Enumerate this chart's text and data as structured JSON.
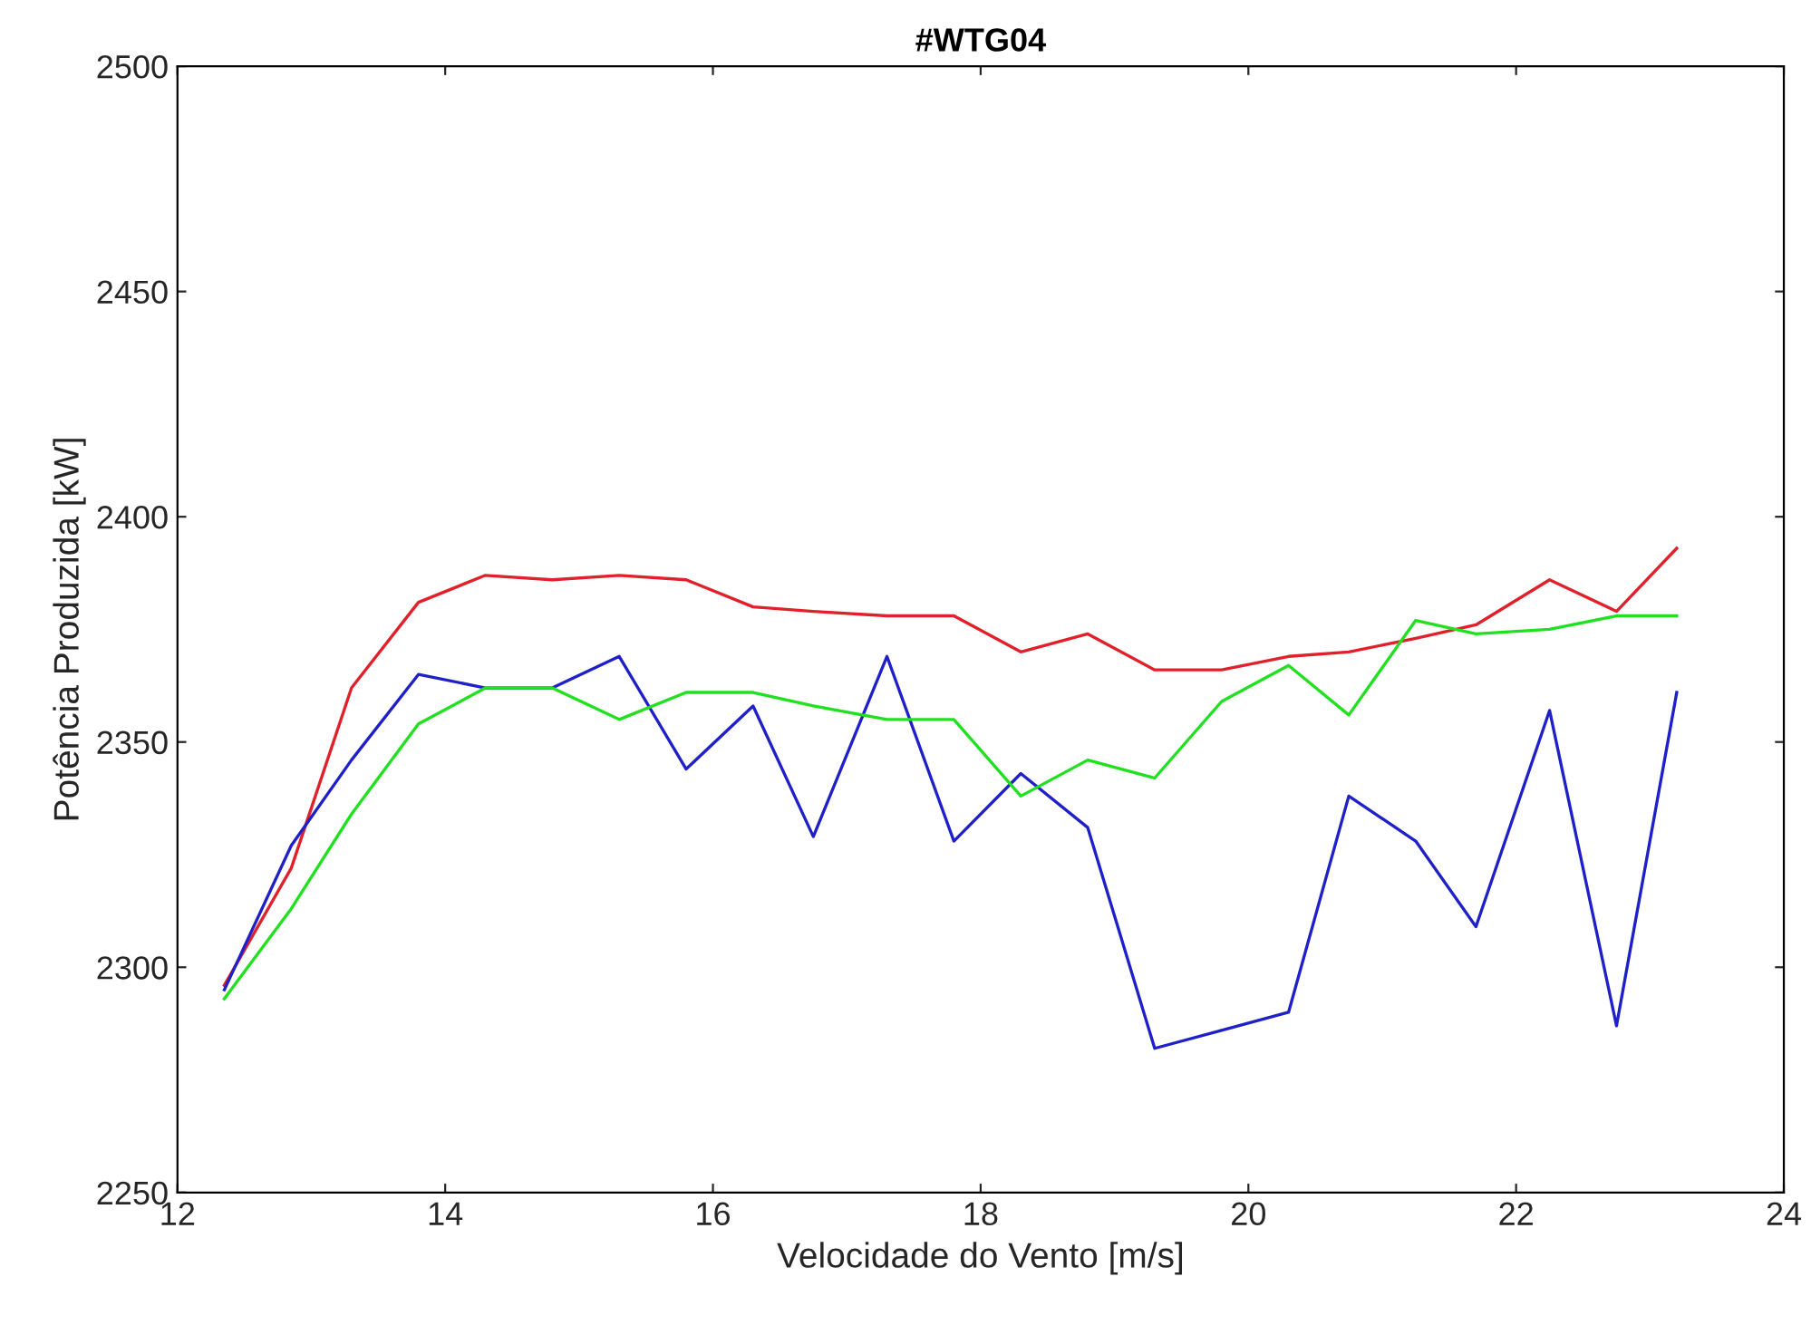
{
  "chart_data": {
    "type": "line",
    "title": "#WTG04",
    "xlabel": "Velocidade do Vento [m/s]",
    "ylabel": "Potência Produzida [kW]",
    "x": [
      12.35,
      12.85,
      13.3,
      13.8,
      14.3,
      14.8,
      15.3,
      15.8,
      16.3,
      16.75,
      17.3,
      17.8,
      18.3,
      18.8,
      19.3,
      19.8,
      20.3,
      20.75,
      21.25,
      21.7,
      22.25,
      22.75,
      23.2
    ],
    "series": [
      {
        "color": "#e0202a",
        "values": [
          2296,
          2322,
          2362,
          2381,
          2387,
          2386,
          2387,
          2386,
          2380,
          2379,
          2378,
          2378,
          2370,
          2374,
          2366,
          2366,
          2369,
          2370,
          2373,
          2376,
          2386,
          2379,
          2393
        ]
      },
      {
        "color": "#2020c8",
        "values": [
          2295,
          2327,
          2346,
          2365,
          2362,
          2362,
          2369,
          2344,
          2358,
          2329,
          2369,
          2328,
          2343,
          2331,
          2282,
          2286,
          2290,
          2338,
          2328,
          2309,
          2357,
          2287,
          2361
        ]
      },
      {
        "color": "#20e020",
        "values": [
          2293,
          2313,
          2334,
          2354,
          2362,
          2362,
          2355,
          2361,
          2361,
          2358,
          2355,
          2355,
          2338,
          2346,
          2342,
          2359,
          2367,
          2356,
          2377,
          2374,
          2375,
          2378,
          2378
        ]
      }
    ],
    "xlim": [
      12,
      24
    ],
    "xticks": [
      12,
      14,
      16,
      18,
      20,
      22,
      24
    ],
    "ylim": [
      2250,
      2500
    ],
    "yticks": [
      2250,
      2300,
      2350,
      2400,
      2450,
      2500
    ],
    "grid": false,
    "legend": false,
    "marker": "none",
    "line_style": "solid"
  }
}
